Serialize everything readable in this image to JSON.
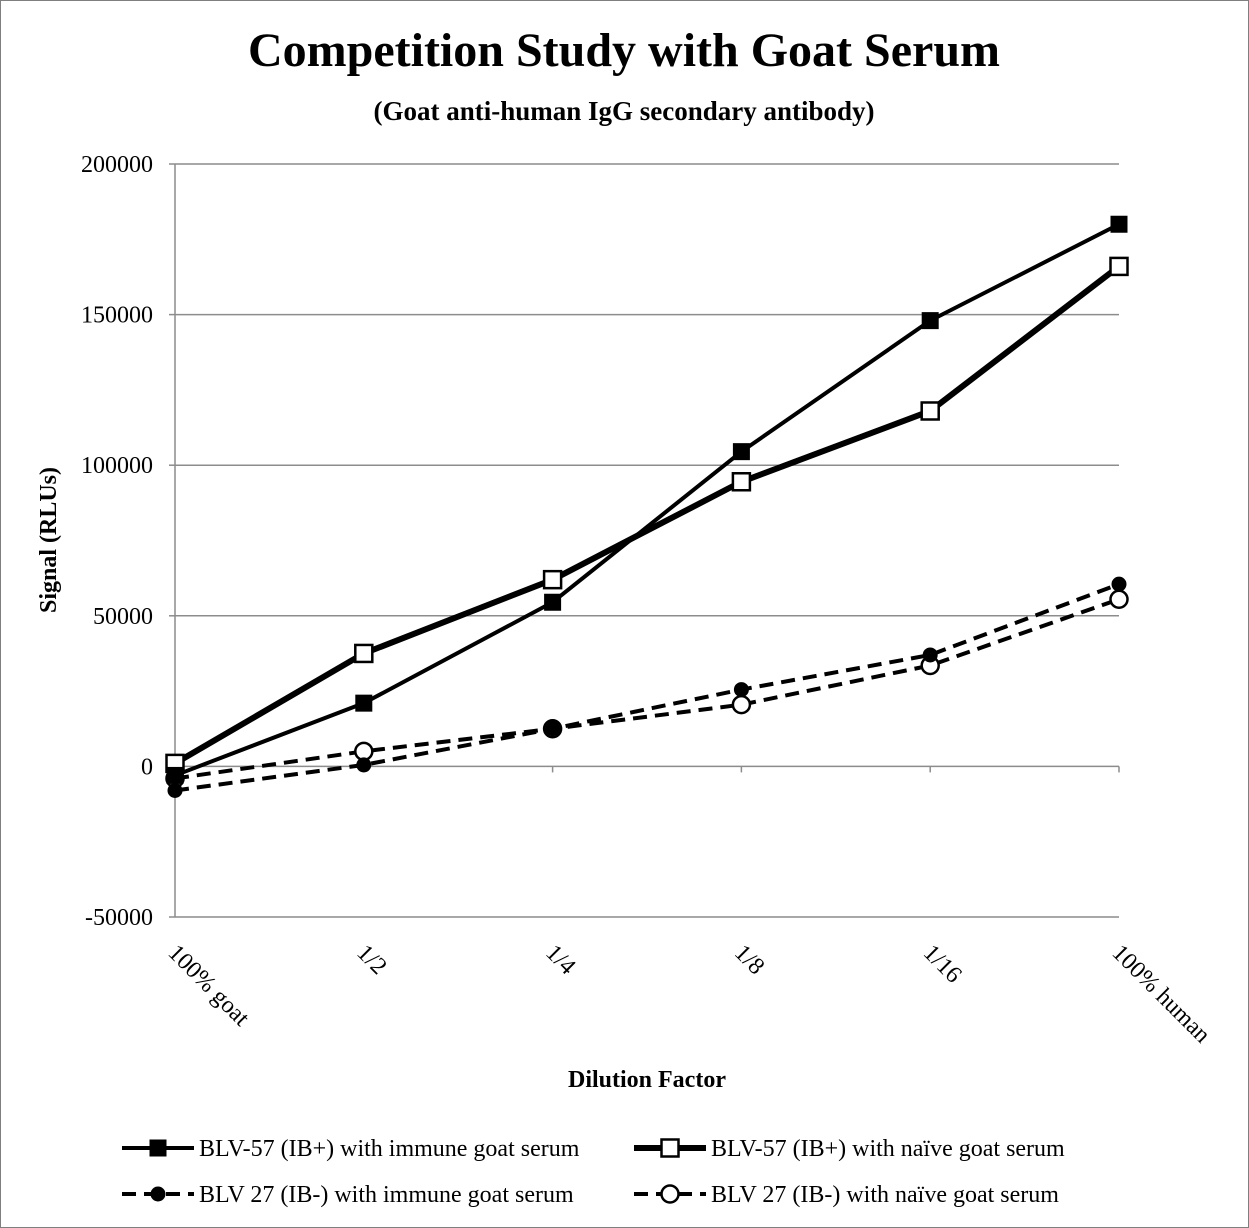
{
  "chart_data": {
    "type": "line",
    "title": "Competition Study with Goat Serum",
    "subtitle": "(Goat anti-human IgG secondary antibody)",
    "xlabel": "Dilution Factor",
    "ylabel": "Signal (RLUs)",
    "categories": [
      "100% goat",
      "1/2",
      "1/4",
      "1/8",
      "1/16",
      "100% human"
    ],
    "ylim": [
      -50000,
      200000
    ],
    "yticks": [
      200000,
      150000,
      100000,
      50000,
      0,
      -50000
    ],
    "ytick_labels": [
      "200000",
      "150000",
      "100000",
      "50000",
      "0",
      "-50000"
    ],
    "grid": "horizontal major gridlines",
    "legend_position": "bottom",
    "series": [
      {
        "name": "BLV-57 (IB+) with immune goat serum",
        "values": [
          -3000,
          21000,
          54500,
          104500,
          148000,
          180000
        ],
        "line_style": "solid",
        "marker": "filled-square",
        "color": "#000000"
      },
      {
        "name": "BLV-57 (IB+) with naïve goat serum",
        "values": [
          1000,
          37500,
          62000,
          94500,
          118000,
          166000
        ],
        "line_style": "solid-thick",
        "marker": "open-square",
        "color": "#000000"
      },
      {
        "name": "BLV 27 (IB-) with immune goat serum",
        "values": [
          -8000,
          500,
          12500,
          25500,
          37000,
          60500
        ],
        "line_style": "dashed",
        "marker": "filled-circle",
        "color": "#000000"
      },
      {
        "name": "BLV 27 (IB-) with naïve goat serum",
        "values": [
          -4000,
          5000,
          12500,
          20500,
          33500,
          55500
        ],
        "line_style": "dashed",
        "marker": "open-circle",
        "color": "#000000"
      }
    ]
  }
}
